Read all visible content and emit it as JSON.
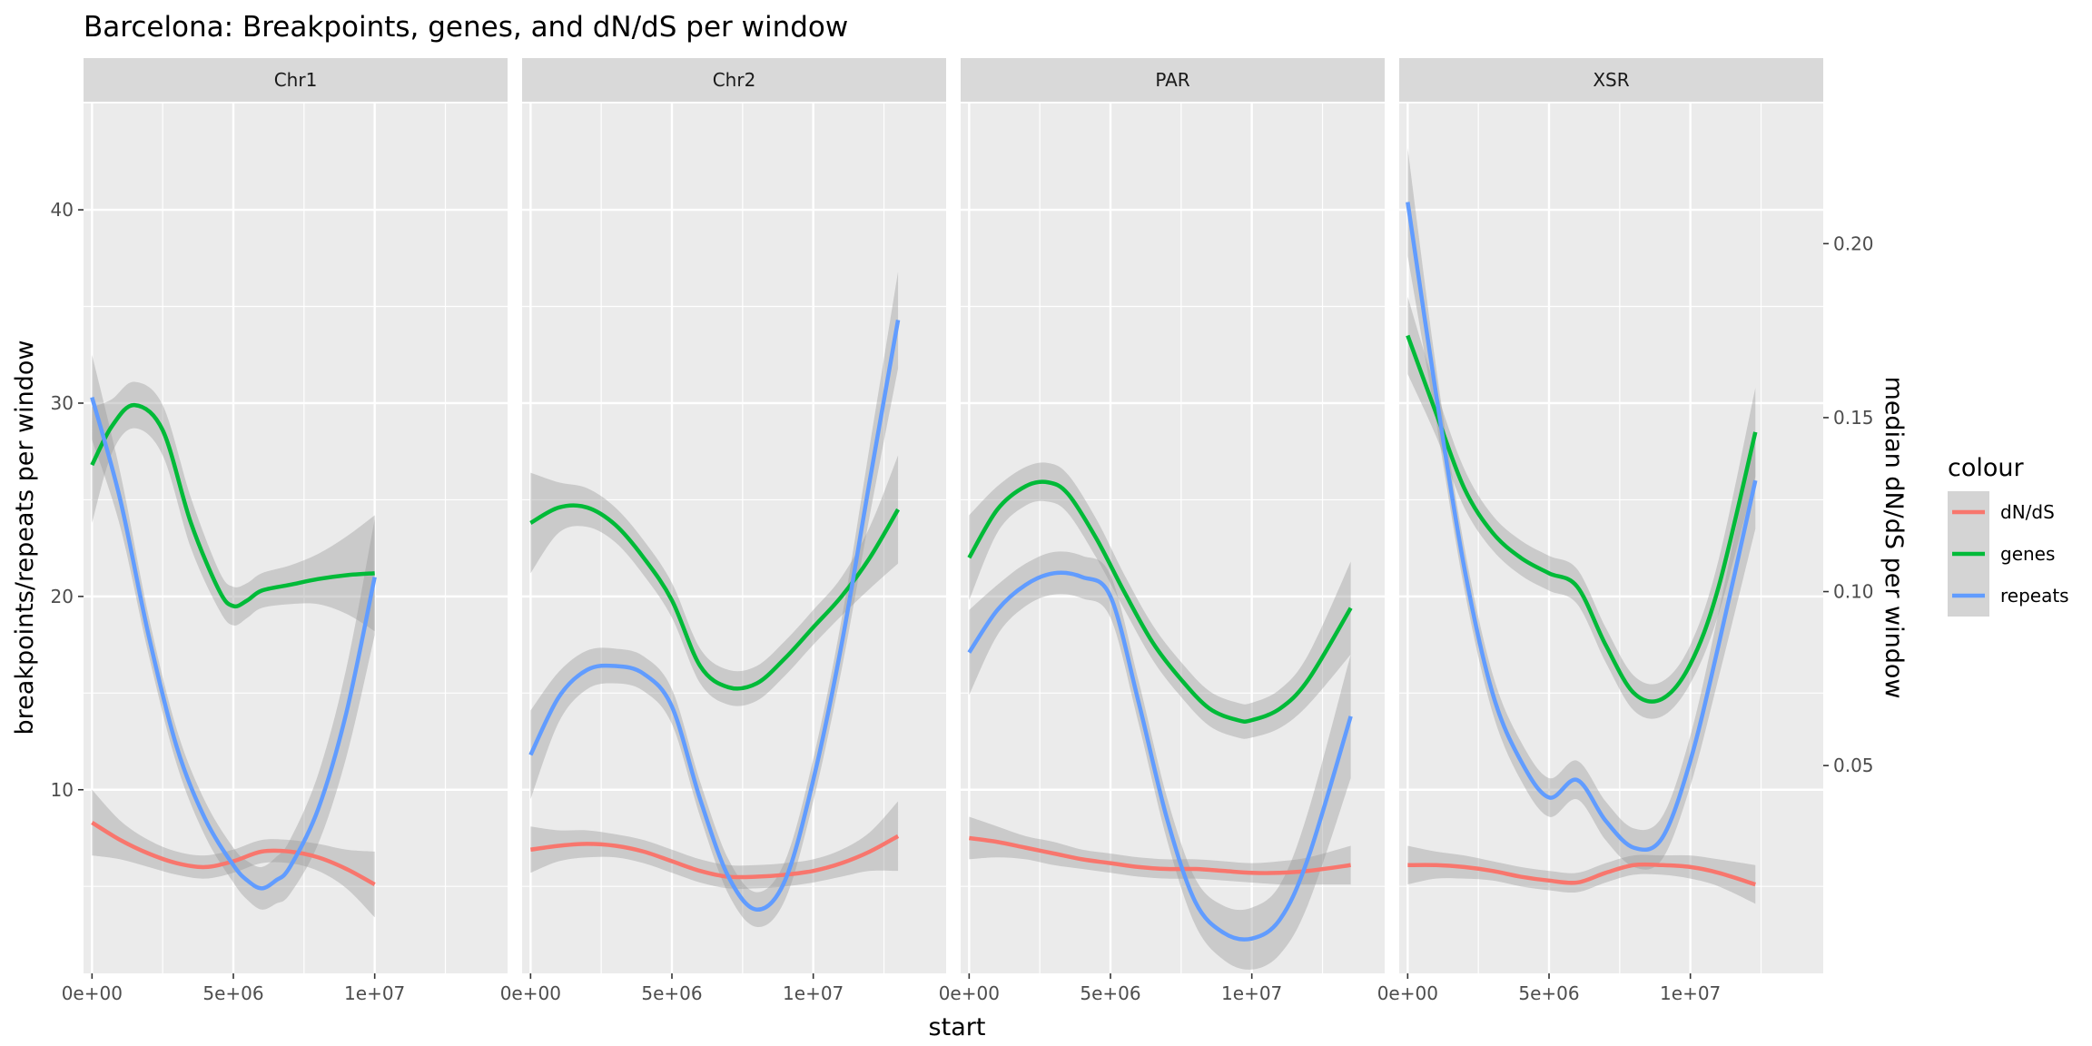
{
  "chart_data": {
    "type": "line",
    "title": "Barcelona: Breakpoints, genes, and dN/dS per window",
    "xlabel": "start",
    "ylabel": "breakpoints/repeats per window",
    "y2label": "median dN/dS per window",
    "xlim": [
      -300000,
      14700000
    ],
    "x_ticks": [
      0,
      5000000,
      10000000
    ],
    "x_tick_labels": [
      "0e+00",
      "5e+06",
      "1e+07"
    ],
    "ylim": [
      0.5,
      45.5
    ],
    "y_ticks": [
      10,
      20,
      30,
      40
    ],
    "y_tick_labels": [
      "10",
      "20",
      "30",
      "40"
    ],
    "y2_ticks": [
      0.05,
      0.1,
      0.15,
      0.2
    ],
    "y2_tick_labels": [
      "0.05",
      "0.10",
      "0.15",
      "0.20"
    ],
    "y2_transform": "dnds = (y - 2.25) / 180",
    "grid": true,
    "smoothed_with_confidence_band": true,
    "legend": {
      "title": "colour",
      "position": "right",
      "entries": [
        {
          "label": "dN/dS",
          "color": "#F8766D"
        },
        {
          "label": "genes",
          "color": "#00BA38"
        },
        {
          "label": "repeats",
          "color": "#619CFF"
        }
      ]
    },
    "panels": [
      {
        "label": "Chr1",
        "series": [
          {
            "name": "dN/dS",
            "color": "#F8766D",
            "x": [
              0,
              1000000,
              2000000,
              3000000,
              4000000,
              5000000,
              6000000,
              7000000,
              8000000,
              9000000,
              10000000
            ],
            "y": [
              8.3,
              7.4,
              6.7,
              6.2,
              6.0,
              6.3,
              6.8,
              6.8,
              6.5,
              5.9,
              5.1
            ],
            "band": [
              1.7,
              1.0,
              0.7,
              0.6,
              0.6,
              0.6,
              0.6,
              0.6,
              0.7,
              1.0,
              1.7
            ]
          },
          {
            "name": "genes",
            "color": "#00BA38",
            "x": [
              0,
              700000,
              1500000,
              2500000,
              3500000,
              4500000,
              5000000,
              5500000,
              6000000,
              7000000,
              8000000,
              9000000,
              10000000
            ],
            "y": [
              26.8,
              28.8,
              29.9,
              28.6,
              23.8,
              20.3,
              19.5,
              19.8,
              20.3,
              20.6,
              20.9,
              21.1,
              21.2
            ],
            "band": [
              3.0,
              1.4,
              1.2,
              1.3,
              1.3,
              1.0,
              1.0,
              0.9,
              0.9,
              1.0,
              1.3,
              2.0,
              3.0
            ]
          },
          {
            "name": "repeats",
            "color": "#619CFF",
            "x": [
              0,
              1000000,
              2000000,
              3000000,
              4000000,
              5000000,
              5500000,
              6000000,
              6500000,
              7000000,
              8000000,
              9000000,
              10000000
            ],
            "y": [
              30.3,
              25.0,
              18.0,
              12.2,
              8.5,
              6.1,
              5.3,
              4.9,
              5.3,
              6.0,
              9.0,
              14.0,
              21.0
            ],
            "band": [
              2.2,
              1.4,
              1.0,
              0.9,
              0.9,
              0.9,
              1.0,
              1.1,
              1.2,
              1.4,
              1.8,
              2.3,
              3.0
            ]
          }
        ]
      },
      {
        "label": "Chr2",
        "series": [
          {
            "name": "dN/dS",
            "color": "#F8766D",
            "x": [
              0,
              1000000,
              2000000,
              3000000,
              4000000,
              5000000,
              6000000,
              7000000,
              8000000,
              9000000,
              10000000,
              11000000,
              12000000,
              13000000
            ],
            "y": [
              6.9,
              7.1,
              7.2,
              7.1,
              6.8,
              6.3,
              5.8,
              5.5,
              5.5,
              5.6,
              5.8,
              6.2,
              6.8,
              7.6
            ],
            "band": [
              1.2,
              0.8,
              0.7,
              0.6,
              0.6,
              0.6,
              0.6,
              0.6,
              0.6,
              0.6,
              0.6,
              0.7,
              1.0,
              1.8
            ]
          },
          {
            "name": "genes",
            "color": "#00BA38",
            "x": [
              0,
              1000000,
              2000000,
              3000000,
              4000000,
              5000000,
              6000000,
              7000000,
              8000000,
              9000000,
              10000000,
              11000000,
              12000000,
              13000000
            ],
            "y": [
              23.8,
              24.6,
              24.6,
              23.7,
              22.0,
              19.8,
              16.4,
              15.3,
              15.5,
              16.8,
              18.4,
              20.0,
              22.0,
              24.5
            ],
            "band": [
              2.6,
              1.3,
              1.0,
              0.9,
              0.9,
              0.9,
              0.9,
              0.9,
              0.9,
              0.9,
              0.9,
              1.0,
              1.6,
              2.8
            ]
          },
          {
            "name": "repeats",
            "color": "#619CFF",
            "x": [
              0,
              1000000,
              2000000,
              3000000,
              4000000,
              5000000,
              6000000,
              7000000,
              8000000,
              9000000,
              10000000,
              11000000,
              12000000,
              13000000
            ],
            "y": [
              11.8,
              14.8,
              16.2,
              16.4,
              16.0,
              14.3,
              9.5,
              5.5,
              3.8,
              5.3,
              10.5,
              17.5,
              26.0,
              34.3
            ],
            "band": [
              2.3,
              1.3,
              1.0,
              0.9,
              0.9,
              0.9,
              0.9,
              0.9,
              0.9,
              1.0,
              1.1,
              1.3,
              1.8,
              2.5
            ]
          }
        ]
      },
      {
        "label": "PAR",
        "series": [
          {
            "name": "dN/dS",
            "color": "#F8766D",
            "x": [
              0,
              1000000,
              2000000,
              3000000,
              4000000,
              5000000,
              6000000,
              7000000,
              8000000,
              9000000,
              10000000,
              11000000,
              12000000,
              13500000
            ],
            "y": [
              7.5,
              7.3,
              7.0,
              6.7,
              6.4,
              6.2,
              6.0,
              5.9,
              5.9,
              5.8,
              5.7,
              5.7,
              5.8,
              6.1
            ],
            "band": [
              1.1,
              0.8,
              0.6,
              0.6,
              0.5,
              0.5,
              0.5,
              0.5,
              0.5,
              0.5,
              0.5,
              0.6,
              0.7,
              1.0
            ]
          },
          {
            "name": "genes",
            "color": "#00BA38",
            "x": [
              0,
              1000000,
              2000000,
              2800000,
              3500000,
              4500000,
              5500000,
              6500000,
              7500000,
              8500000,
              9500000,
              10000000,
              11000000,
              12000000,
              13500000
            ],
            "y": [
              22.0,
              24.5,
              25.7,
              25.9,
              25.3,
              23.0,
              20.2,
              17.6,
              15.7,
              14.2,
              13.6,
              13.6,
              14.2,
              15.7,
              19.4
            ],
            "band": [
              2.2,
              1.2,
              1.0,
              1.0,
              1.0,
              1.0,
              0.9,
              0.9,
              0.9,
              0.9,
              0.9,
              0.9,
              1.0,
              1.3,
              2.4
            ]
          },
          {
            "name": "repeats",
            "color": "#619CFF",
            "x": [
              0,
              1000000,
              2000000,
              3000000,
              4000000,
              5000000,
              6000000,
              7000000,
              8000000,
              9000000,
              10000000,
              11000000,
              12000000,
              13500000
            ],
            "y": [
              17.1,
              19.3,
              20.6,
              21.2,
              21.0,
              20.0,
              14.5,
              8.5,
              4.2,
              2.6,
              2.3,
              3.3,
              6.5,
              13.8
            ],
            "band": [
              2.2,
              1.3,
              1.1,
              1.1,
              1.1,
              1.1,
              1.1,
              1.1,
              1.2,
              1.4,
              1.6,
              1.8,
              2.4,
              3.2
            ]
          }
        ]
      },
      {
        "label": "XSR",
        "series": [
          {
            "name": "dN/dS",
            "color": "#F8766D",
            "x": [
              0,
              1000000,
              2000000,
              3000000,
              4000000,
              5000000,
              6000000,
              7000000,
              8000000,
              9000000,
              10000000,
              11000000,
              12300000
            ],
            "y": [
              6.1,
              6.1,
              6.0,
              5.8,
              5.5,
              5.3,
              5.2,
              5.7,
              6.1,
              6.1,
              6.0,
              5.7,
              5.1
            ],
            "band": [
              1.0,
              0.7,
              0.6,
              0.5,
              0.5,
              0.5,
              0.5,
              0.5,
              0.5,
              0.5,
              0.6,
              0.7,
              1.0
            ]
          },
          {
            "name": "genes",
            "color": "#00BA38",
            "x": [
              0,
              1000000,
              2000000,
              3000000,
              4000000,
              5000000,
              6000000,
              7000000,
              8000000,
              9000000,
              10000000,
              11000000,
              12300000
            ],
            "y": [
              33.5,
              29.5,
              25.6,
              23.3,
              22.0,
              21.2,
              20.5,
              17.5,
              15.0,
              14.7,
              16.5,
              20.5,
              28.5
            ],
            "band": [
              2.0,
              1.2,
              1.0,
              0.9,
              0.9,
              0.9,
              0.9,
              0.9,
              0.9,
              0.9,
              1.0,
              1.4,
              2.3
            ]
          },
          {
            "name": "repeats",
            "color": "#619CFF",
            "x": [
              0,
              1000000,
              2000000,
              3000000,
              4000000,
              5000000,
              6000000,
              7000000,
              8000000,
              9000000,
              10000000,
              11000000,
              12300000
            ],
            "y": [
              40.4,
              30.5,
              21.5,
              15.0,
              11.5,
              9.6,
              10.5,
              8.4,
              7.0,
              7.5,
              11.5,
              17.5,
              26.0
            ],
            "band": [
              2.8,
              1.4,
              1.1,
              1.0,
              1.0,
              1.0,
              1.0,
              1.0,
              1.0,
              1.1,
              1.3,
              1.7,
              2.5
            ]
          }
        ]
      }
    ]
  }
}
